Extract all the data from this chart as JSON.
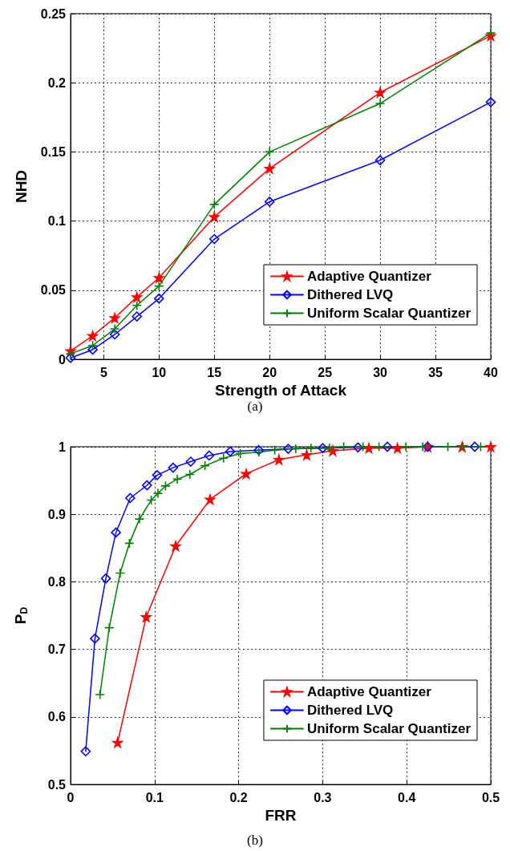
{
  "chart_data": [
    {
      "type": "line",
      "xlabel": "Strength of Attack",
      "ylabel": "NHD",
      "xlim": [
        2,
        40
      ],
      "xticks": [
        5,
        10,
        15,
        20,
        25,
        30,
        35,
        40
      ],
      "ylim": [
        0,
        0.25
      ],
      "yticks": [
        0,
        0.05,
        0.1,
        0.15,
        0.2,
        0.25
      ],
      "grid": true,
      "legend": "bottom right",
      "line_style": "solid",
      "annotations": [
        "(a)"
      ],
      "x": [
        2,
        4,
        6,
        8,
        10,
        15,
        20,
        30,
        40
      ],
      "series": [
        {
          "name": "Adaptive Quantizer",
          "color": "#ff0000",
          "marker": "star",
          "values": [
            0.006,
            0.017,
            0.03,
            0.045,
            0.059,
            0.103,
            0.138,
            0.193,
            0.234
          ]
        },
        {
          "name": "Dithered LVQ",
          "color": "#0000ff",
          "marker": "diamond",
          "values": [
            0.001,
            0.007,
            0.018,
            0.031,
            0.044,
            0.087,
            0.114,
            0.144,
            0.186
          ]
        },
        {
          "name": "Uniform Scalar Quantizer",
          "color": "#008000",
          "marker": "cross",
          "values": [
            0.004,
            0.01,
            0.022,
            0.039,
            0.053,
            0.112,
            0.15,
            0.185,
            0.236
          ]
        }
      ]
    },
    {
      "type": "line",
      "xlabel": "FRR",
      "ylabel": "P$_{D}$",
      "xlim": [
        0,
        0.5
      ],
      "xticks": [
        0,
        0.1,
        0.2,
        0.3,
        0.4,
        0.5
      ],
      "ylim": [
        0.5,
        1
      ],
      "yticks": [
        0.5,
        0.6,
        0.7,
        0.8,
        0.9,
        1
      ],
      "grid": true,
      "legend": "bottom right",
      "line_style": "solid",
      "annotations": [
        "(b)"
      ],
      "series": [
        {
          "name": "Adaptive Quantizer",
          "color": "#ff0000",
          "marker": "star",
          "x": [
            0.056,
            0.09,
            0.125,
            0.166,
            0.209,
            0.248,
            0.281,
            0.312,
            0.355,
            0.389,
            0.425,
            0.466,
            0.5
          ],
          "values": [
            0.562,
            0.748,
            0.853,
            0.922,
            0.96,
            0.981,
            0.988,
            0.994,
            0.998,
            0.998,
            1,
            1,
            1
          ]
        },
        {
          "name": "Dithered LVQ",
          "color": "#0000ff",
          "marker": "diamond",
          "x": [
            0.018,
            0.029,
            0.042,
            0.054,
            0.071,
            0.091,
            0.103,
            0.122,
            0.143,
            0.165,
            0.19,
            0.224,
            0.259,
            0.3,
            0.342,
            0.377,
            0.425,
            0.481
          ],
          "values": [
            0.549,
            0.716,
            0.805,
            0.873,
            0.924,
            0.943,
            0.958,
            0.969,
            0.978,
            0.987,
            0.993,
            0.995,
            0.997,
            0.998,
            0.999,
            1,
            1,
            1
          ]
        },
        {
          "name": "Uniform Scalar Quantizer",
          "color": "#008000",
          "marker": "cross",
          "x": [
            0.035,
            0.046,
            0.059,
            0.07,
            0.082,
            0.096,
            0.104,
            0.113,
            0.127,
            0.142,
            0.16,
            0.182,
            0.202,
            0.224,
            0.243,
            0.268,
            0.286,
            0.308,
            0.325,
            0.348,
            0.367,
            0.399,
            0.419,
            0.449,
            0.467,
            0.488
          ],
          "values": [
            0.633,
            0.732,
            0.813,
            0.857,
            0.893,
            0.921,
            0.931,
            0.942,
            0.952,
            0.959,
            0.972,
            0.983,
            0.99,
            0.992,
            0.995,
            0.997,
            0.998,
            0.998,
            1,
            1,
            1,
            1,
            1,
            1,
            1,
            1
          ]
        }
      ]
    }
  ]
}
